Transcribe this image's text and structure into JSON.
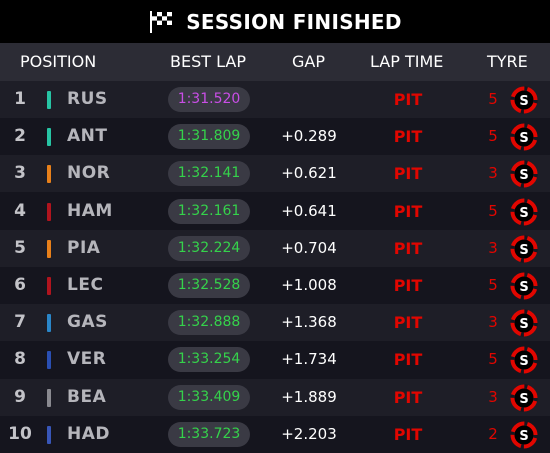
{
  "banner": {
    "title": "SESSION FINISHED",
    "icon": "checkered-flag-icon"
  },
  "columns": {
    "position": "POSITION",
    "best_lap": "BEST LAP",
    "gap": "GAP",
    "lap_time": "LAP TIME",
    "tyre": "TYRE"
  },
  "tyre_compound": "soft",
  "colors": {
    "background": "#15151e",
    "header_bg": "#2c2c35",
    "fastest_lap": "#c94ee6",
    "best_lap": "#35d24b",
    "pit": "#e10600",
    "tyre_soft": "#e10600"
  },
  "rows": [
    {
      "position": "1",
      "driver": "RUS",
      "team_color": "#27c4a4",
      "best_lap": "1:31.520",
      "fastest": true,
      "gap": "",
      "lap_time": "PIT",
      "tyre_laps": "5",
      "tyre": "S"
    },
    {
      "position": "2",
      "driver": "ANT",
      "team_color": "#27c4a4",
      "best_lap": "1:31.809",
      "fastest": false,
      "gap": "+0.289",
      "lap_time": "PIT",
      "tyre_laps": "5",
      "tyre": "S"
    },
    {
      "position": "3",
      "driver": "NOR",
      "team_color": "#e8801a",
      "best_lap": "1:32.141",
      "fastest": false,
      "gap": "+0.621",
      "lap_time": "PIT",
      "tyre_laps": "3",
      "tyre": "S"
    },
    {
      "position": "4",
      "driver": "HAM",
      "team_color": "#b0141e",
      "best_lap": "1:32.161",
      "fastest": false,
      "gap": "+0.641",
      "lap_time": "PIT",
      "tyre_laps": "5",
      "tyre": "S"
    },
    {
      "position": "5",
      "driver": "PIA",
      "team_color": "#e8801a",
      "best_lap": "1:32.224",
      "fastest": false,
      "gap": "+0.704",
      "lap_time": "PIT",
      "tyre_laps": "3",
      "tyre": "S"
    },
    {
      "position": "6",
      "driver": "LEC",
      "team_color": "#b0141e",
      "best_lap": "1:32.528",
      "fastest": false,
      "gap": "+1.008",
      "lap_time": "PIT",
      "tyre_laps": "5",
      "tyre": "S"
    },
    {
      "position": "7",
      "driver": "GAS",
      "team_color": "#2a86c8",
      "best_lap": "1:32.888",
      "fastest": false,
      "gap": "+1.368",
      "lap_time": "PIT",
      "tyre_laps": "3",
      "tyre": "S"
    },
    {
      "position": "8",
      "driver": "VER",
      "team_color": "#2a4fb3",
      "best_lap": "1:33.254",
      "fastest": false,
      "gap": "+1.734",
      "lap_time": "PIT",
      "tyre_laps": "5",
      "tyre": "S"
    },
    {
      "position": "9",
      "driver": "BEA",
      "team_color": "#8a8a90",
      "best_lap": "1:33.409",
      "fastest": false,
      "gap": "+1.889",
      "lap_time": "PIT",
      "tyre_laps": "3",
      "tyre": "S"
    },
    {
      "position": "10",
      "driver": "HAD",
      "team_color": "#3856b8",
      "best_lap": "1:33.723",
      "fastest": false,
      "gap": "+2.203",
      "lap_time": "PIT",
      "tyre_laps": "2",
      "tyre": "S"
    }
  ]
}
